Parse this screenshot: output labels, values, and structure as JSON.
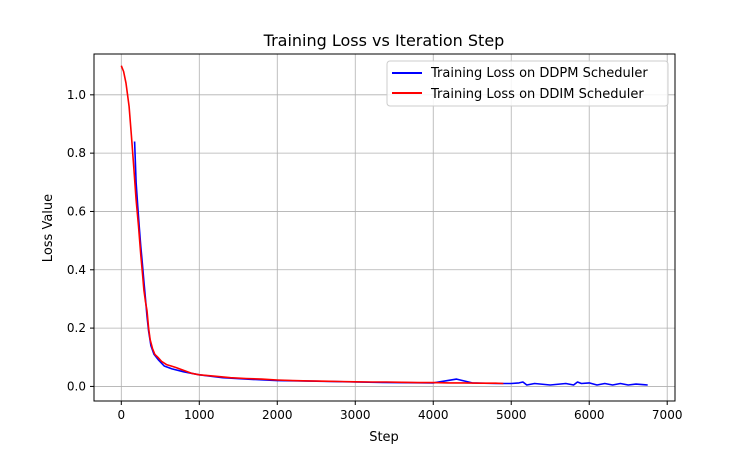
{
  "chart_data": {
    "type": "line",
    "title": "Training Loss vs Iteration Step",
    "xlabel": "Step",
    "ylabel": "Loss Value",
    "xlim": [
      -350,
      7100
    ],
    "ylim": [
      -0.05,
      1.14
    ],
    "xticks": [
      0,
      1000,
      2000,
      3000,
      4000,
      5000,
      6000,
      7000
    ],
    "yticks": [
      0.0,
      0.2,
      0.4,
      0.6,
      0.8,
      1.0
    ],
    "xtick_labels": [
      "0",
      "1000",
      "2000",
      "3000",
      "4000",
      "5000",
      "6000",
      "7000"
    ],
    "ytick_labels": [
      "0.0",
      "0.2",
      "0.4",
      "0.6",
      "0.8",
      "1.0"
    ],
    "grid": true,
    "legend_position": "upper right",
    "series": [
      {
        "name": "Training Loss on DDPM Scheduler",
        "color": "#0000ff",
        "x": [
          170,
          190,
          210,
          230,
          250,
          270,
          290,
          310,
          330,
          350,
          380,
          420,
          480,
          550,
          650,
          800,
          1000,
          1300,
          1600,
          2000,
          2500,
          3000,
          3500,
          4000,
          4300,
          4500,
          4800,
          5000,
          5100,
          5150,
          5200,
          5300,
          5500,
          5700,
          5800,
          5850,
          5900,
          6000,
          6100,
          6200,
          6300,
          6400,
          6500,
          6600,
          6700,
          6750
        ],
        "values": [
          0.84,
          0.7,
          0.62,
          0.55,
          0.48,
          0.42,
          0.36,
          0.3,
          0.24,
          0.19,
          0.14,
          0.11,
          0.09,
          0.07,
          0.06,
          0.05,
          0.04,
          0.03,
          0.025,
          0.02,
          0.018,
          0.015,
          0.013,
          0.012,
          0.025,
          0.012,
          0.01,
          0.01,
          0.012,
          0.015,
          0.005,
          0.01,
          0.005,
          0.01,
          0.005,
          0.015,
          0.01,
          0.012,
          0.005,
          0.01,
          0.005,
          0.01,
          0.005,
          0.008,
          0.006,
          0.005
        ]
      },
      {
        "name": "Training Loss on DDIM Scheduler",
        "color": "#ff0000",
        "x": [
          0,
          30,
          60,
          100,
          130,
          160,
          190,
          220,
          250,
          270,
          290,
          310,
          330,
          350,
          370,
          400,
          430,
          470,
          520,
          580,
          640,
          700,
          800,
          900,
          1000,
          1200,
          1400,
          1600,
          1800,
          2000,
          2200,
          2400,
          2600,
          2800,
          3000,
          3200,
          3400,
          3600,
          3800,
          4000,
          4200,
          4400,
          4600,
          4800,
          4900
        ],
        "values": [
          1.1,
          1.08,
          1.04,
          0.96,
          0.86,
          0.75,
          0.64,
          0.55,
          0.45,
          0.39,
          0.33,
          0.29,
          0.26,
          0.2,
          0.16,
          0.13,
          0.11,
          0.1,
          0.085,
          0.075,
          0.07,
          0.065,
          0.055,
          0.045,
          0.04,
          0.035,
          0.03,
          0.027,
          0.025,
          0.022,
          0.02,
          0.019,
          0.018,
          0.017,
          0.016,
          0.015,
          0.015,
          0.014,
          0.013,
          0.013,
          0.012,
          0.012,
          0.011,
          0.011,
          0.01
        ]
      }
    ]
  }
}
